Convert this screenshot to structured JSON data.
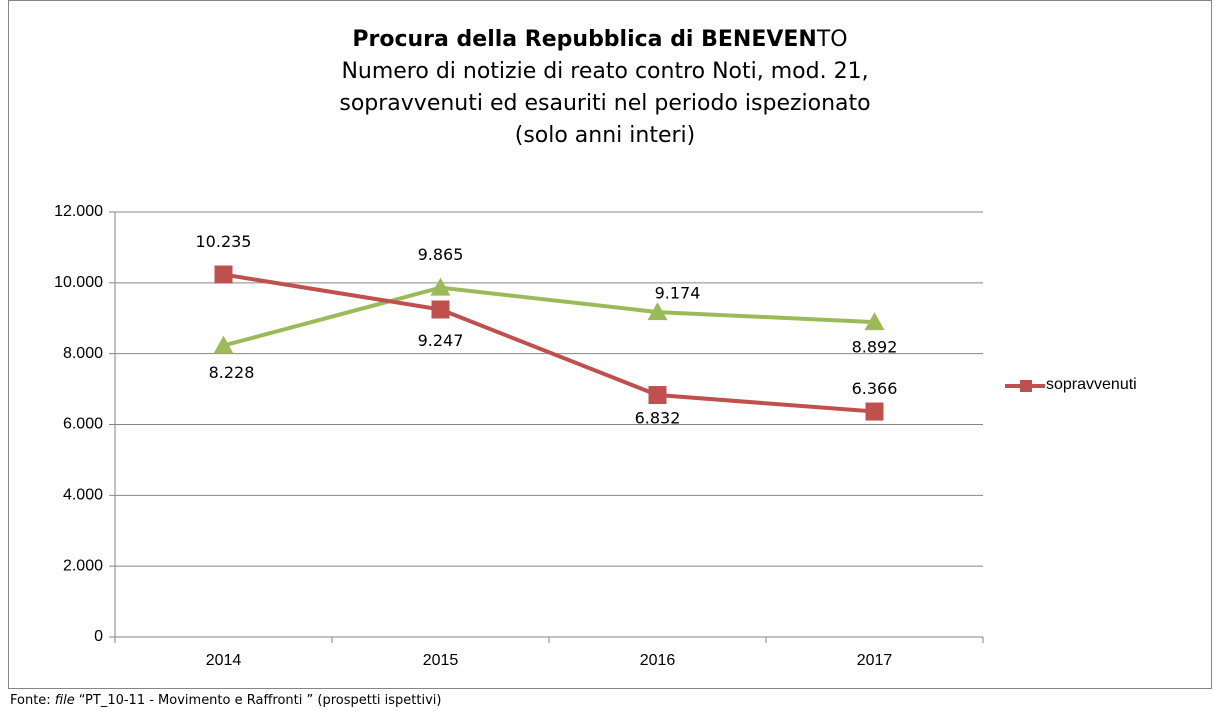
{
  "chart_data": {
    "type": "line",
    "title_parts": [
      "Procura della Repubblica di BENEVEN",
      "TO"
    ],
    "subtitle": [
      "Numero di notizie di reato contro Noti, mod. 21,",
      "sopravvenuti ed esauriti nel periodo ispezionato",
      "(solo anni interi)"
    ],
    "categories": [
      "2014",
      "2015",
      "2016",
      "2017"
    ],
    "series": [
      {
        "name": "sopravvenuti",
        "color": "#c0504d",
        "marker": "square",
        "values": [
          10235,
          9247,
          6832,
          6366
        ],
        "value_labels": [
          "10.235",
          "9.247",
          "6.832",
          "6.366"
        ]
      },
      {
        "color": "#9bbb59",
        "marker": "triangle",
        "values": [
          8228,
          9865,
          9174,
          8892
        ],
        "value_labels": [
          "8.228",
          "9.865",
          "9.174",
          "8.892"
        ]
      }
    ],
    "ylim": [
      0,
      12000
    ],
    "yticks": [
      {
        "value": 0,
        "label": "0"
      },
      {
        "value": 2000,
        "label": "2.000"
      },
      {
        "value": 4000,
        "label": "4.000"
      },
      {
        "value": 6000,
        "label": "6.000"
      },
      {
        "value": 8000,
        "label": "8.000"
      },
      {
        "value": 10000,
        "label": "10.000"
      },
      {
        "value": 12000,
        "label": "12.000"
      }
    ],
    "grid": true,
    "legend": "right",
    "source": [
      "Fonte:",
      "file",
      "“PT_10-11 - Movimento e Raffronti ” (prospetti ispettivi)"
    ]
  }
}
